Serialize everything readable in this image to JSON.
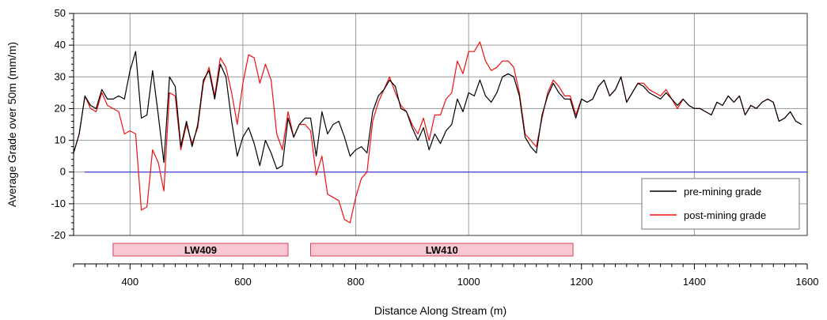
{
  "chart_data": {
    "type": "line",
    "xlabel": "Distance Along Stream (m)",
    "ylabel": "Average Grade over 50m (mm/m)",
    "xlim": [
      300,
      1600
    ],
    "ylim": [
      -20,
      50
    ],
    "x_ticks": [
      400,
      600,
      800,
      1000,
      1200,
      1400,
      1600
    ],
    "y_ticks": [
      -20,
      -10,
      0,
      10,
      20,
      30,
      40,
      50
    ],
    "grid": true,
    "legend_position": "right",
    "reference_line": {
      "y": 0,
      "color": "#4444dd"
    },
    "series": [
      {
        "name": "pre-mining grade",
        "color": "#000000",
        "x": [
          300,
          310,
          320,
          330,
          340,
          350,
          360,
          370,
          380,
          390,
          400,
          410,
          420,
          430,
          440,
          450,
          460,
          470,
          480,
          490,
          500,
          510,
          520,
          530,
          540,
          550,
          560,
          570,
          580,
          590,
          600,
          610,
          620,
          630,
          640,
          650,
          660,
          670,
          680,
          690,
          700,
          710,
          720,
          730,
          740,
          750,
          760,
          770,
          780,
          790,
          800,
          810,
          820,
          830,
          840,
          850,
          860,
          870,
          880,
          890,
          900,
          910,
          920,
          930,
          940,
          950,
          960,
          970,
          980,
          990,
          1000,
          1010,
          1020,
          1030,
          1040,
          1050,
          1060,
          1070,
          1080,
          1090,
          1100,
          1110,
          1120,
          1130,
          1140,
          1150,
          1160,
          1170,
          1180,
          1190,
          1200,
          1210,
          1220,
          1230,
          1240,
          1250,
          1260,
          1270,
          1280,
          1290,
          1300,
          1310,
          1320,
          1330,
          1340,
          1350,
          1360,
          1370,
          1380,
          1390,
          1400,
          1410,
          1420,
          1430,
          1440,
          1450,
          1460,
          1470,
          1480,
          1490,
          1500,
          1510,
          1520,
          1530,
          1540,
          1550,
          1560,
          1570,
          1580,
          1590
        ],
        "y": [
          6,
          12,
          24,
          21,
          20,
          26,
          23,
          23,
          24,
          23,
          32,
          38,
          17,
          18,
          32,
          18,
          3,
          30,
          27,
          8,
          16,
          8,
          15,
          29,
          32,
          23,
          34,
          30,
          16,
          5,
          11,
          14,
          9,
          2,
          10,
          6,
          1,
          2,
          17,
          11,
          15,
          17,
          17,
          5,
          19,
          12,
          15,
          16,
          11,
          5,
          7,
          8,
          6,
          19,
          24,
          26,
          29,
          27,
          20,
          19,
          14,
          10,
          14,
          7,
          12,
          9,
          13,
          15,
          23,
          19,
          25,
          24,
          29,
          24,
          22,
          25,
          30,
          31,
          30,
          24,
          11,
          8,
          6,
          18,
          24,
          28,
          25,
          23,
          23,
          17,
          23,
          22,
          23,
          27,
          29,
          24,
          26,
          30,
          22,
          25,
          28,
          27,
          25,
          24,
          23,
          25,
          23,
          21,
          23,
          21,
          20,
          20,
          19,
          18,
          22,
          21,
          24,
          22,
          24,
          18,
          21,
          20,
          22,
          23,
          22,
          16,
          17,
          19,
          16,
          15
        ]
      },
      {
        "name": "post-mining grade",
        "color": "#ee1111",
        "x": [
          300,
          310,
          320,
          330,
          340,
          350,
          360,
          370,
          380,
          390,
          400,
          410,
          420,
          430,
          440,
          450,
          460,
          470,
          480,
          490,
          500,
          510,
          520,
          530,
          540,
          550,
          560,
          570,
          580,
          590,
          600,
          610,
          620,
          630,
          640,
          650,
          660,
          670,
          680,
          690,
          700,
          710,
          720,
          730,
          740,
          750,
          760,
          770,
          780,
          790,
          800,
          810,
          820,
          830,
          840,
          850,
          860,
          870,
          880,
          890,
          900,
          910,
          920,
          930,
          940,
          950,
          960,
          970,
          980,
          990,
          1000,
          1010,
          1020,
          1030,
          1040,
          1050,
          1060,
          1070,
          1080,
          1090,
          1100,
          1110,
          1120,
          1130,
          1140,
          1150,
          1160,
          1170,
          1180,
          1190,
          1200,
          1210,
          1220,
          1230,
          1240,
          1250,
          1260,
          1270,
          1280,
          1290,
          1300,
          1310,
          1320,
          1330,
          1340,
          1350,
          1360,
          1370,
          1380,
          1390,
          1400,
          1410,
          1420,
          1430,
          1440,
          1450,
          1460,
          1470,
          1480,
          1490,
          1500,
          1510,
          1520,
          1530,
          1540,
          1550,
          1560,
          1570,
          1580,
          1590
        ],
        "y": [
          6,
          12,
          24,
          20,
          19,
          25,
          21,
          20,
          19,
          12,
          13,
          12,
          -12,
          -11,
          7,
          3,
          -6,
          25,
          24,
          7,
          15,
          9,
          14,
          28,
          33,
          24,
          36,
          33,
          25,
          15,
          28,
          37,
          36,
          28,
          34,
          29,
          12,
          7,
          19,
          11,
          15,
          15,
          13,
          -1,
          5,
          -7,
          -8,
          -9,
          -15,
          -16,
          -8,
          -2,
          0,
          16,
          22,
          26,
          30,
          25,
          21,
          19,
          15,
          12,
          17,
          10,
          18,
          18,
          23,
          25,
          35,
          31,
          38,
          38,
          41,
          35,
          32,
          33,
          35,
          35,
          33,
          25,
          12,
          10,
          8,
          17,
          25,
          29,
          27,
          24,
          24,
          18,
          23,
          22,
          23,
          27,
          29,
          24,
          26,
          30,
          22,
          25,
          28,
          28,
          26,
          25,
          24,
          26,
          23,
          20,
          23,
          21,
          20,
          20,
          19,
          18,
          22,
          21,
          24,
          22,
          24,
          18,
          21,
          20,
          22,
          23,
          22,
          16,
          17,
          19,
          16,
          15
        ]
      }
    ],
    "annotations": [
      {
        "label": "LW409",
        "x_start": 370,
        "x_end": 680
      },
      {
        "label": "LW410",
        "x_start": 720,
        "x_end": 1185
      }
    ]
  }
}
